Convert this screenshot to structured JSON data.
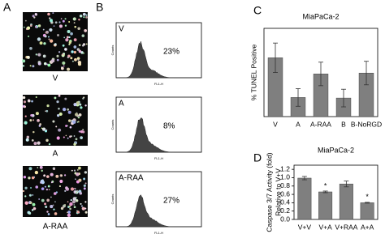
{
  "panel_labels": [
    "A",
    "B",
    "C",
    "D"
  ],
  "panel_a": {
    "captions": [
      "V",
      "A",
      "A-RAA"
    ]
  },
  "panel_b": {
    "ylabel": "Counts",
    "xlabel": "FL1-H",
    "plots": [
      {
        "label": "V",
        "percent": "23%"
      },
      {
        "label": "A",
        "percent": "8%"
      },
      {
        "label": "A-RAA",
        "percent": "27%"
      }
    ]
  },
  "chart_data": [
    {
      "type": "bar",
      "title": "MiaPaCa-2",
      "ylabel": [
        "% TUNEL Positive"
      ],
      "categories": [
        "V",
        "A",
        "A-RAA",
        "B",
        "B-NoRGD"
      ],
      "values": [
        20,
        6.5,
        14.5,
        6.3,
        14.8
      ],
      "errors": [
        5,
        3,
        4,
        3,
        4
      ],
      "color": "#7f7f7f",
      "ylim": [
        0,
        30
      ]
    },
    {
      "type": "bar",
      "title": "MiaPaCa-2",
      "ylabel": [
        "Caspase 3/7 Activity (fold)",
        "Relative to V+V"
      ],
      "categories": [
        "V+V",
        "V+A",
        "V+RAA",
        "A+A"
      ],
      "values": [
        0.99,
        0.66,
        0.85,
        0.4
      ],
      "errors": [
        0.04,
        0.02,
        0.07,
        0.01
      ],
      "significance": [
        null,
        "*",
        null,
        "*"
      ],
      "color": "#7f7f7f",
      "ylim": [
        0,
        1.3
      ],
      "yticks": [
        {
          "value": 0,
          "label": "0.0"
        },
        {
          "value": 0.2,
          "label": "0.2"
        },
        {
          "value": 0.4,
          "label": "0.4"
        },
        {
          "value": 0.6,
          "label": "0.6"
        },
        {
          "value": 0.8,
          "label": "0.8"
        },
        {
          "value": 1,
          "label": "1.0"
        },
        {
          "value": 1.2,
          "label": "1.2"
        }
      ]
    }
  ]
}
